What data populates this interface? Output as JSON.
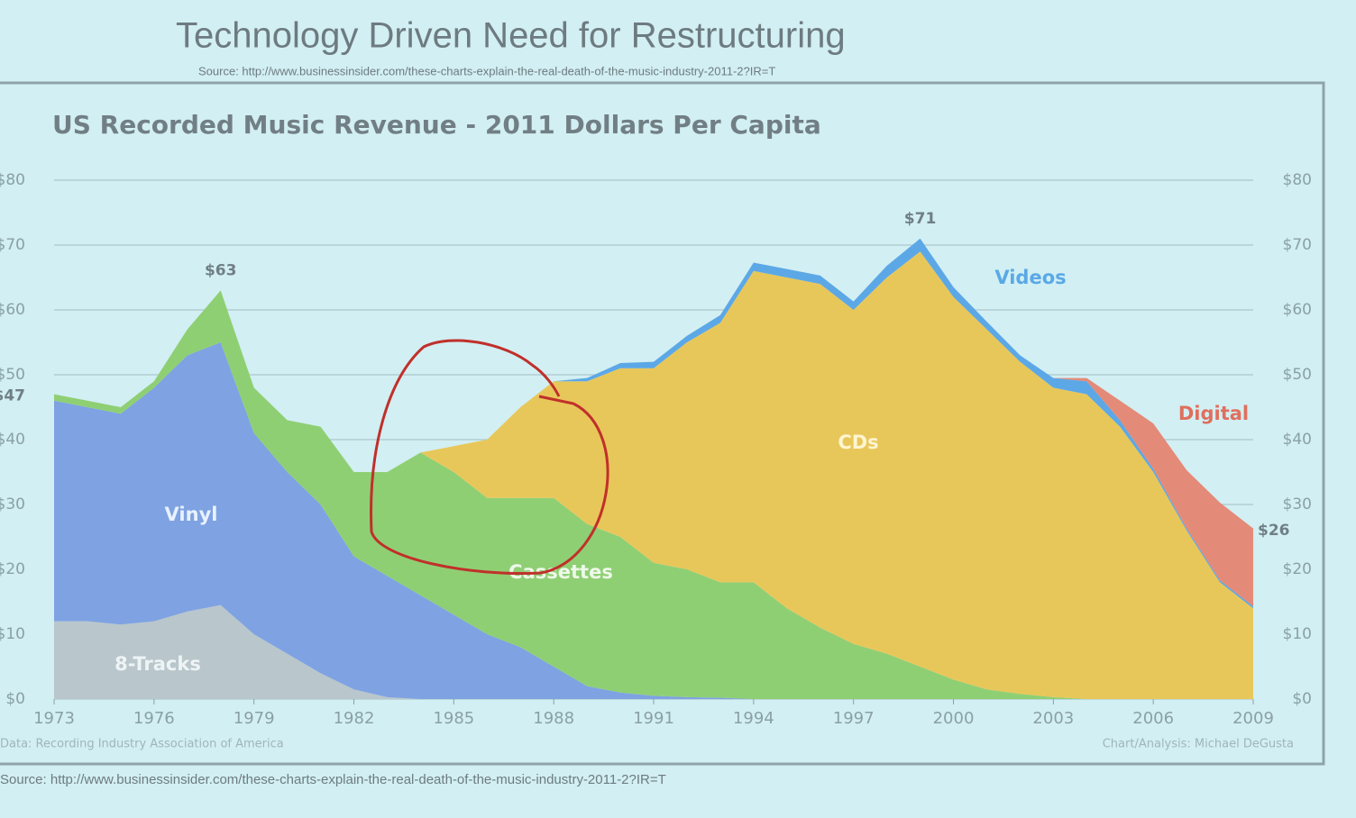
{
  "slide": {
    "title": "Technology Driven Need for Restructuring",
    "source_top": "Source: http://www.businessinsider.com/these-charts-explain-the-real-death-of-the-music-industry-2011-2?IR=T",
    "source_bottom": "Source: http://www.businessinsider.com/these-charts-explain-the-real-death-of-the-music-industry-2011-2?IR=T"
  },
  "chart_data": {
    "type": "stacked_area",
    "title": "US Recorded Music Revenue - 2011 Dollars Per Capita",
    "data_credit": "Data: Recording Industry Association of America",
    "analysis_credit": "Chart/Analysis: Michael DeGusta",
    "x": [
      1973,
      1974,
      1975,
      1976,
      1977,
      1978,
      1979,
      1980,
      1981,
      1982,
      1983,
      1984,
      1985,
      1986,
      1987,
      1988,
      1989,
      1990,
      1991,
      1992,
      1993,
      1994,
      1995,
      1996,
      1997,
      1998,
      1999,
      2000,
      2001,
      2002,
      2003,
      2004,
      2005,
      2006,
      2007,
      2008,
      2009
    ],
    "xlim": [
      1973,
      2009
    ],
    "xticks": [
      1973,
      1976,
      1979,
      1982,
      1985,
      1988,
      1991,
      1994,
      1997,
      2000,
      2003,
      2006,
      2009
    ],
    "ylim": [
      0,
      80
    ],
    "yticks": [
      {
        "value": 0,
        "label": "$0"
      },
      {
        "value": 10,
        "label": "$10"
      },
      {
        "value": 20,
        "label": "$20"
      },
      {
        "value": 30,
        "label": "$30"
      },
      {
        "value": 40,
        "label": "$40"
      },
      {
        "value": 50,
        "label": "$50"
      },
      {
        "value": 60,
        "label": "$60"
      },
      {
        "value": 70,
        "label": "$70"
      },
      {
        "value": 80,
        "label": "$80"
      }
    ],
    "grid": true,
    "series": [
      {
        "name": "8-Tracks",
        "color": "#b9c6cb",
        "values": [
          12,
          12,
          11.5,
          12,
          13.5,
          14.5,
          10,
          7,
          4,
          1.5,
          0.3,
          0,
          0,
          0,
          0,
          0,
          0,
          0,
          0,
          0,
          0,
          0,
          0,
          0,
          0,
          0,
          0,
          0,
          0,
          0,
          0,
          0,
          0,
          0,
          0,
          0,
          0
        ]
      },
      {
        "name": "Vinyl",
        "color": "#7fa2e2",
        "values": [
          34,
          33,
          32.5,
          36,
          39.5,
          40.5,
          31,
          28,
          26,
          20.5,
          18.7,
          16,
          13,
          10,
          8,
          5,
          2,
          1,
          0.5,
          0.3,
          0.2,
          0,
          0,
          0,
          0,
          0,
          0,
          0,
          0,
          0,
          0,
          0,
          0,
          0,
          0,
          0,
          0
        ]
      },
      {
        "name": "Cassettes",
        "color": "#8fcf74",
        "values": [
          1,
          1,
          1,
          1,
          4,
          8,
          7,
          8,
          12,
          13,
          16,
          22,
          22,
          21,
          23,
          26,
          25,
          24,
          20.5,
          19.7,
          17.8,
          18,
          14,
          11,
          8.5,
          7,
          5,
          3,
          1.5,
          0.8,
          0.3,
          0,
          0,
          0,
          0,
          0,
          0
        ]
      },
      {
        "name": "CDs",
        "color": "#e8c75a",
        "values": [
          0,
          0,
          0,
          0,
          0,
          0,
          0,
          0,
          0,
          0,
          0,
          0,
          4,
          9,
          14,
          18,
          22,
          26,
          30,
          35,
          40,
          48,
          51,
          53,
          51.5,
          58,
          64,
          59,
          55.5,
          51.2,
          47.7,
          47,
          42,
          35,
          26,
          18,
          14
        ]
      },
      {
        "name": "Videos",
        "color": "#5ca8e6",
        "values": [
          0,
          0,
          0,
          0,
          0,
          0,
          0,
          0,
          0,
          0,
          0,
          0,
          0,
          0,
          0,
          0,
          0.5,
          0.8,
          1,
          1,
          1.2,
          1.3,
          1.3,
          1.3,
          1.3,
          1.8,
          2,
          1.5,
          1.2,
          1,
          1.5,
          2,
          1,
          0.5,
          0.3,
          0.3,
          0.3
        ]
      },
      {
        "name": "Digital",
        "color": "#e48a78",
        "values": [
          0,
          0,
          0,
          0,
          0,
          0,
          0,
          0,
          0,
          0,
          0,
          0,
          0,
          0,
          0,
          0,
          0,
          0,
          0,
          0,
          0,
          0,
          0,
          0,
          0,
          0,
          0,
          0,
          0,
          0,
          0,
          0.5,
          3,
          7,
          9,
          12,
          12
        ]
      }
    ],
    "annotations": [
      {
        "text": "$47",
        "x": 1973,
        "value": 47
      },
      {
        "text": "$63",
        "x": 1978,
        "value": 63
      },
      {
        "text": "$71",
        "x": 1999,
        "value": 71
      },
      {
        "text": "$26",
        "x": 2009,
        "value": 26
      }
    ]
  }
}
